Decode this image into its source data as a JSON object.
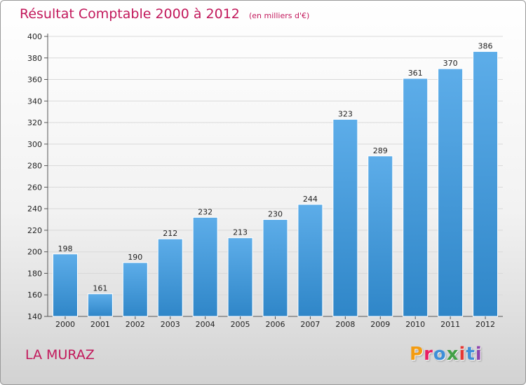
{
  "header": {
    "title": "Résultat Comptable 2000 à 2012",
    "unit": "(en milliers d'€)"
  },
  "commune": "LA MURAZ",
  "logo": {
    "letters": [
      "P",
      "r",
      "o",
      "x",
      "i",
      "t",
      "i"
    ],
    "colors": [
      "#f39c12",
      "#e91e63",
      "#3f8fd8",
      "#43a047",
      "#e53935",
      "#3f8fd8",
      "#8e44ad"
    ]
  },
  "colors": {
    "bar_light": "#5dade9",
    "bar_dark": "#2f86c8",
    "title": "#c2185b",
    "grid": "#d9d9d9"
  },
  "chart_data": {
    "type": "bar",
    "title": "Résultat Comptable 2000 à 2012",
    "ylabel": "(en milliers d'€)",
    "xlabel": "",
    "categories": [
      "2000",
      "2001",
      "2002",
      "2003",
      "2004",
      "2005",
      "2006",
      "2007",
      "2008",
      "2009",
      "2010",
      "2011",
      "2012"
    ],
    "values": [
      198,
      161,
      190,
      212,
      232,
      213,
      230,
      244,
      323,
      289,
      361,
      370,
      386
    ],
    "ylim": [
      140,
      400
    ],
    "yticks": [
      140,
      160,
      180,
      200,
      220,
      240,
      260,
      280,
      300,
      320,
      340,
      360,
      380,
      400
    ],
    "grid": true
  }
}
